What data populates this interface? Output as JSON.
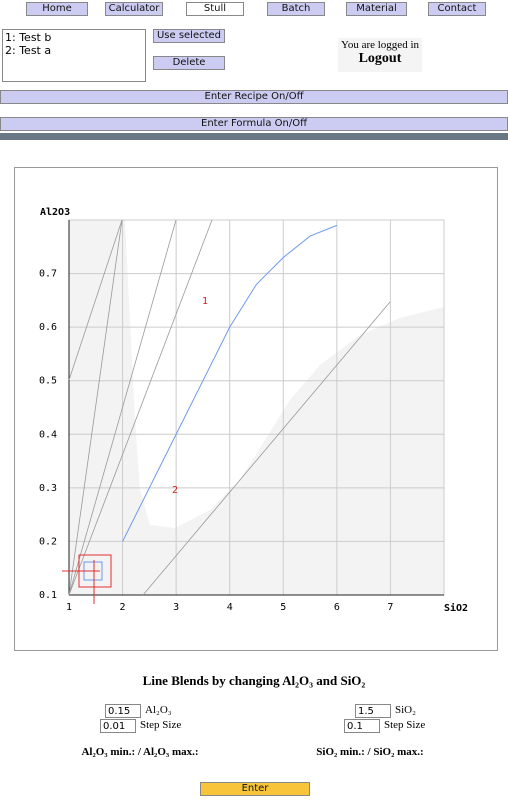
{
  "nav": [
    "Home",
    "Calculator",
    "Stull",
    "Batch",
    "Material",
    "Contact"
  ],
  "recipes": [
    "1: Test b",
    "2: Test a"
  ],
  "buttons": {
    "use_selected": "Use selected",
    "delete": "Delete",
    "recipe_toggle": "Enter Recipe On/Off",
    "formula_toggle": "Enter Formula On/Off",
    "enter": "Enter"
  },
  "login": {
    "status": "You are logged in",
    "logout": "Logout"
  },
  "chart": {
    "x_label": "SiO2",
    "y_label": "Al2O3",
    "xlim": [
      1,
      8
    ],
    "ylim": [
      0.1,
      0.8
    ],
    "xticks": [
      1,
      2,
      3,
      4,
      5,
      6,
      7
    ],
    "yticks": [
      0.1,
      0.2,
      0.3,
      0.4,
      0.5,
      0.6,
      0.7
    ],
    "line": {
      "color": "#6f9ae8",
      "x": [
        2,
        3,
        4,
        4.5,
        5,
        5.5,
        6
      ],
      "y": [
        0.2,
        0.4,
        0.6,
        0.68,
        0.73,
        0.77,
        0.79
      ]
    },
    "annotations": [
      "1",
      "2"
    ]
  },
  "form": {
    "title": "Line Blends by changing Al₂O₃ and SiO₂",
    "al2o3": {
      "value": "0.15",
      "label": "Al₂O₃",
      "step": "0.01",
      "step_label": "Step Size",
      "range": "Al₂O₃ min.: / Al₂O₃ max.:"
    },
    "sio2": {
      "value": "1.5",
      "label": "SiO₂",
      "step": "0.1",
      "step_label": "Step Size",
      "range": "SiO₂ min.: / SiO₂ max.:"
    }
  }
}
